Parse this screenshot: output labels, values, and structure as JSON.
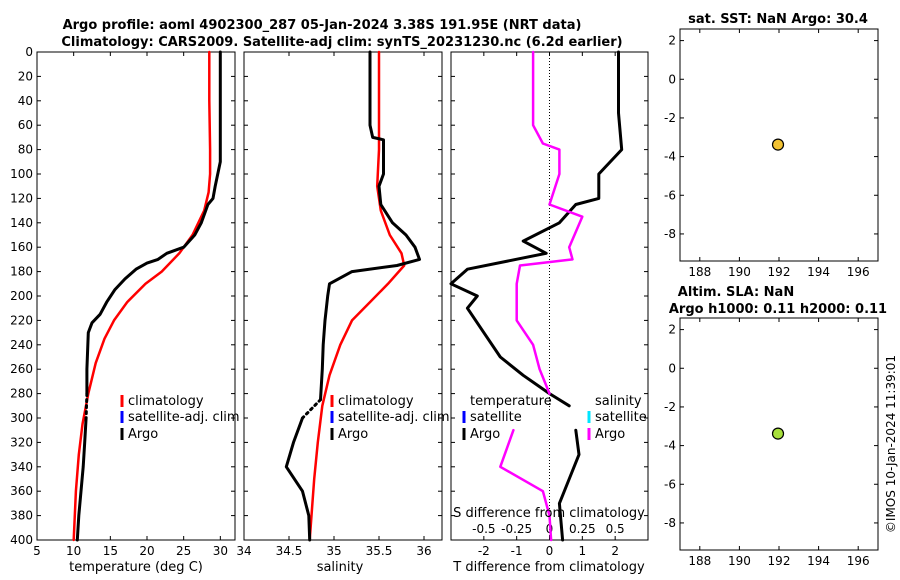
{
  "title_line1": "Argo profile: aoml 4902300_287 05-Jan-2024 3.38S 191.95E (NRT data)",
  "title_line2": "Climatology: CARS2009. Satellite-adj clim: synTS_20231230.nc (6.2d earlier)",
  "watermark": "©IMOS 10-Jan-2024 11:39:01",
  "colors": {
    "climatology": "#ff0000",
    "satellite_adj": "#0000ff",
    "argo": "#000000",
    "salinity_diff": "#ff00ff",
    "salinity_satellite": "#00e5ff",
    "sst_marker": "#f2c232",
    "sla_marker": "#a8e03c"
  },
  "chart_data": [
    {
      "id": "temperature",
      "type": "line",
      "xlabel": "temperature (deg C)",
      "xlim": [
        5,
        32
      ],
      "xticks": [
        5,
        10,
        15,
        20,
        25,
        30
      ],
      "ylim": [
        0,
        400
      ],
      "yticks": [
        0,
        20,
        40,
        60,
        80,
        100,
        120,
        140,
        160,
        180,
        200,
        220,
        240,
        260,
        280,
        300,
        320,
        340,
        360,
        380,
        400
      ],
      "y_reversed": true,
      "legend": [
        "climatology",
        "satellite-adj. clim",
        "Argo"
      ],
      "series": [
        {
          "name": "climatology",
          "color": "#ff0000",
          "width": 2.5,
          "points": [
            [
              28.5,
              0
            ],
            [
              28.5,
              40
            ],
            [
              28.6,
              80
            ],
            [
              28.6,
              100
            ],
            [
              28.4,
              115
            ],
            [
              27.8,
              130
            ],
            [
              26.2,
              150
            ],
            [
              24.4,
              165
            ],
            [
              22,
              180
            ],
            [
              19.8,
              190
            ],
            [
              17.3,
              205
            ],
            [
              15.5,
              220
            ],
            [
              14.2,
              235
            ],
            [
              13,
              255
            ],
            [
              12,
              280
            ],
            [
              11.2,
              305
            ],
            [
              10.7,
              330
            ],
            [
              10.3,
              360
            ],
            [
              10,
              400
            ]
          ]
        },
        {
          "name": "Argo",
          "color": "#000000",
          "width": 3,
          "points": [
            [
              30,
              0
            ],
            [
              30,
              60
            ],
            [
              30,
              90
            ],
            [
              29.3,
              110
            ],
            [
              29,
              120
            ],
            [
              28.3,
              125
            ],
            [
              27.4,
              140
            ],
            [
              26.5,
              150
            ],
            [
              25,
              160
            ],
            [
              22.7,
              165
            ],
            [
              21.5,
              170
            ],
            [
              20,
              173
            ],
            [
              18.5,
              178
            ],
            [
              17,
              186
            ],
            [
              15.6,
              195
            ],
            [
              14.5,
              205
            ],
            [
              13.6,
              215
            ],
            [
              12.5,
              222
            ],
            [
              12,
              230
            ],
            [
              11.8,
              260
            ],
            [
              11.8,
              280
            ]
          ]
        },
        {
          "name": "Argo-gap",
          "color": "#000000",
          "width": 3,
          "dashed": true,
          "points": [
            [
              11.8,
              280
            ],
            [
              11.7,
              300
            ]
          ]
        },
        {
          "name": "Argo-deep",
          "color": "#000000",
          "width": 3,
          "points": [
            [
              11.7,
              300
            ],
            [
              11.5,
              320
            ],
            [
              11.3,
              340
            ],
            [
              11,
              360
            ],
            [
              10.7,
              380
            ],
            [
              10.5,
              400
            ]
          ]
        }
      ]
    },
    {
      "id": "salinity",
      "type": "line",
      "xlabel": "salinity",
      "xlim": [
        34,
        36.2
      ],
      "xticks": [
        34,
        34.5,
        35,
        35.5,
        36
      ],
      "ylim": [
        0,
        400
      ],
      "y_reversed": true,
      "legend": [
        "climatology",
        "satellite-adj. clim",
        "Argo"
      ],
      "series": [
        {
          "name": "climatology",
          "color": "#ff0000",
          "width": 2.5,
          "points": [
            [
              35.5,
              0
            ],
            [
              35.5,
              80
            ],
            [
              35.48,
              110
            ],
            [
              35.52,
              130
            ],
            [
              35.62,
              150
            ],
            [
              35.75,
              165
            ],
            [
              35.78,
              175
            ],
            [
              35.6,
              190
            ],
            [
              35.4,
              205
            ],
            [
              35.2,
              220
            ],
            [
              35.07,
              240
            ],
            [
              34.95,
              265
            ],
            [
              34.87,
              290
            ],
            [
              34.82,
              320
            ],
            [
              34.78,
              350
            ],
            [
              34.75,
              380
            ],
            [
              34.73,
              400
            ]
          ]
        },
        {
          "name": "Argo",
          "color": "#000000",
          "width": 3,
          "points": [
            [
              35.4,
              0
            ],
            [
              35.4,
              60
            ],
            [
              35.43,
              70
            ],
            [
              35.55,
              72
            ],
            [
              35.55,
              100
            ],
            [
              35.5,
              110
            ],
            [
              35.52,
              125
            ],
            [
              35.65,
              140
            ],
            [
              35.8,
              150
            ],
            [
              35.9,
              160
            ],
            [
              35.95,
              170
            ],
            [
              35.7,
              175
            ],
            [
              35.2,
              180
            ],
            [
              34.95,
              190
            ],
            [
              34.93,
              200
            ],
            [
              34.9,
              220
            ],
            [
              34.88,
              240
            ],
            [
              34.87,
              260
            ],
            [
              34.85,
              285
            ]
          ]
        },
        {
          "name": "Argo-gap",
          "color": "#000000",
          "width": 3,
          "dashed": true,
          "points": [
            [
              34.85,
              285
            ],
            [
              34.65,
              300
            ]
          ]
        },
        {
          "name": "Argo-deep",
          "color": "#000000",
          "width": 3,
          "points": [
            [
              34.65,
              300
            ],
            [
              34.55,
              320
            ],
            [
              34.47,
              340
            ],
            [
              34.65,
              360
            ],
            [
              34.72,
              380
            ],
            [
              34.73,
              400
            ]
          ]
        }
      ]
    },
    {
      "id": "difference",
      "type": "line",
      "xlabel": "T difference from climatology",
      "xlim": [
        -3,
        3
      ],
      "xticks": [
        -2,
        -1,
        0,
        1,
        2
      ],
      "top_axis_label": "S difference from climatology",
      "top_ticks": [
        "-0.5",
        "-0.25",
        "0",
        "0.25",
        "0.5"
      ],
      "top_tick_values": [
        -2,
        -1,
        0,
        1,
        2
      ],
      "ylim": [
        0,
        400
      ],
      "y_reversed": true,
      "legend_left": [
        "temperature",
        "satellite",
        "Argo"
      ],
      "legend_right": [
        "salinity",
        "satellite",
        "Argo"
      ],
      "series": [
        {
          "name": "T diff Argo",
          "color": "#000000",
          "width": 3,
          "points": [
            [
              2.1,
              0
            ],
            [
              2.1,
              50
            ],
            [
              2.2,
              80
            ],
            [
              1.5,
              100
            ],
            [
              1.5,
              120
            ],
            [
              0.8,
              125
            ],
            [
              0.3,
              140
            ],
            [
              -0.8,
              155
            ],
            [
              -0.1,
              165
            ],
            [
              -2.5,
              178
            ],
            [
              -3,
              190
            ],
            [
              -2.2,
              200
            ],
            [
              -2.5,
              210
            ],
            [
              -2,
              230
            ],
            [
              -1.5,
              250
            ],
            [
              -0.8,
              265
            ],
            [
              0,
              280
            ],
            [
              0.6,
              290
            ]
          ]
        },
        {
          "name": "T diff Argo deep",
          "color": "#000000",
          "width": 3,
          "points": [
            [
              0.8,
              310
            ],
            [
              0.9,
              330
            ],
            [
              0.6,
              350
            ],
            [
              0.3,
              370
            ],
            [
              0.4,
              400
            ]
          ]
        },
        {
          "name": "S diff Argo",
          "color": "#ff00ff",
          "width": 2.5,
          "points": [
            [
              -0.5,
              0
            ],
            [
              -0.5,
              60
            ],
            [
              -0.2,
              75
            ],
            [
              0.3,
              80
            ],
            [
              0.3,
              100
            ],
            [
              0,
              125
            ],
            [
              1,
              135
            ],
            [
              0.6,
              160
            ],
            [
              0.7,
              170
            ],
            [
              -0.9,
              175
            ],
            [
              -1,
              190
            ],
            [
              -1,
              220
            ],
            [
              -0.5,
              240
            ],
            [
              -0.3,
              260
            ],
            [
              0,
              280
            ]
          ]
        },
        {
          "name": "S diff Argo deep",
          "color": "#ff00ff",
          "width": 2.5,
          "points": [
            [
              -1.1,
              310
            ],
            [
              -1.5,
              340
            ],
            [
              -0.2,
              360
            ],
            [
              0,
              380
            ],
            [
              0.05,
              400
            ]
          ]
        }
      ]
    },
    {
      "id": "sst",
      "type": "scatter",
      "title": "sat. SST: NaN Argo: 30.4",
      "xlim": [
        187,
        197
      ],
      "xticks": [
        188,
        190,
        192,
        194,
        196
      ],
      "ylim": [
        -9.4,
        2.6
      ],
      "yticks": [
        2,
        0,
        -2,
        -4,
        -6,
        -8
      ],
      "points": [
        [
          191.95,
          -3.38
        ]
      ]
    },
    {
      "id": "sla",
      "type": "scatter",
      "title_line1": "Altim. SLA: NaN",
      "title_line2": "Argo h1000: 0.11 h2000: 0.11",
      "xlim": [
        187,
        197
      ],
      "xticks": [
        188,
        190,
        192,
        194,
        196
      ],
      "ylim": [
        -9.4,
        2.6
      ],
      "yticks": [
        2,
        0,
        -2,
        -4,
        -6,
        -8
      ],
      "points": [
        [
          191.95,
          -3.38
        ]
      ]
    }
  ]
}
